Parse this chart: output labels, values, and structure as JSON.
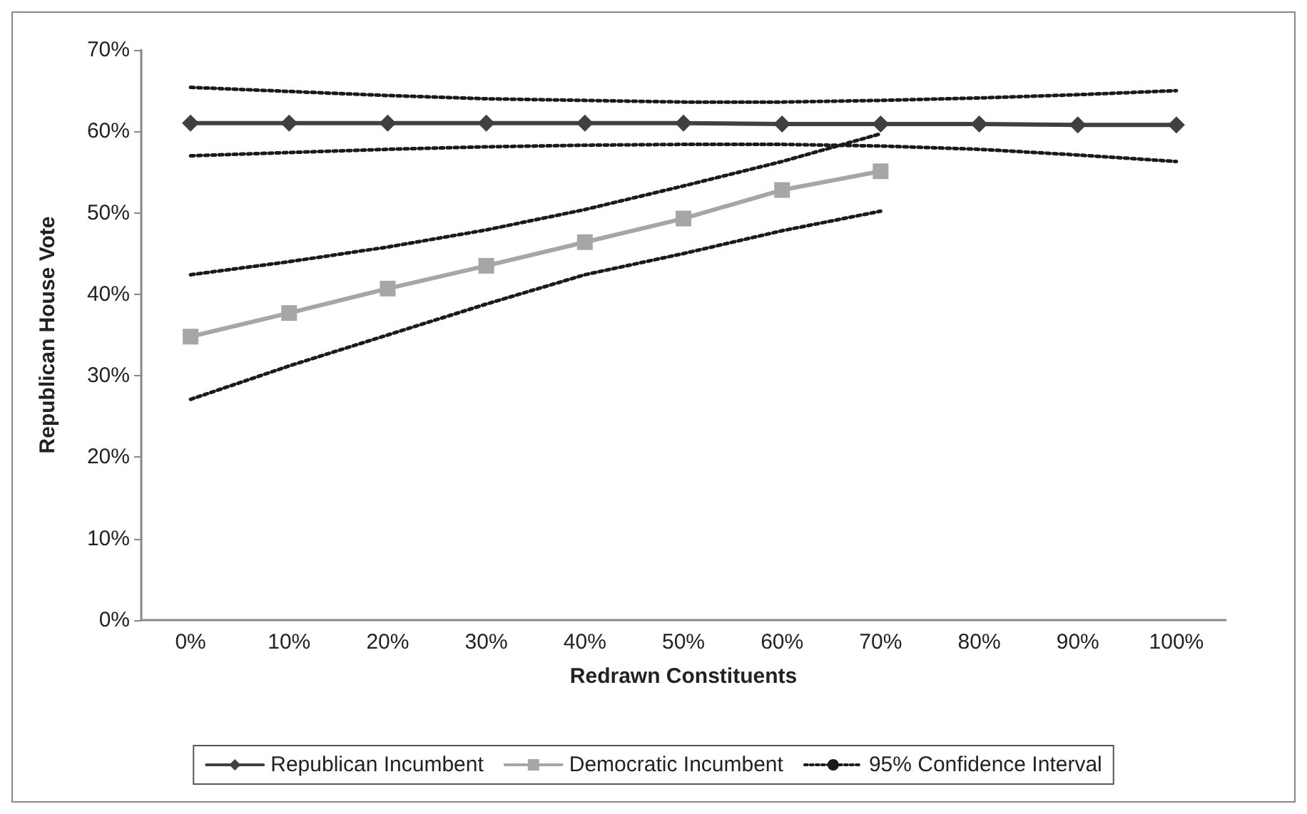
{
  "chart_data": {
    "type": "line",
    "xlabel": "Redrawn Constituents",
    "ylabel": "Republican House Vote",
    "categories": [
      "0%",
      "10%",
      "20%",
      "30%",
      "40%",
      "50%",
      "60%",
      "70%",
      "80%",
      "90%",
      "100%"
    ],
    "ylim": [
      0,
      70
    ],
    "yticks": [
      {
        "value": 0,
        "label": "0%"
      },
      {
        "value": 10,
        "label": "10%"
      },
      {
        "value": 20,
        "label": "20%"
      },
      {
        "value": 30,
        "label": "30%"
      },
      {
        "value": 40,
        "label": "40%"
      },
      {
        "value": 50,
        "label": "50%"
      },
      {
        "value": 60,
        "label": "60%"
      },
      {
        "value": 70,
        "label": "70%"
      }
    ],
    "grid": false,
    "legend": "bottom",
    "series": [
      {
        "name": "Republican Incumbent",
        "color": "#404040",
        "marker": "diamond",
        "line_style": "solid",
        "values": [
          61.0,
          61.0,
          61.0,
          61.0,
          61.0,
          61.0,
          60.9,
          60.9,
          60.9,
          60.8,
          60.8
        ]
      },
      {
        "name": "Democratic Incumbent",
        "color": "#a6a6a6",
        "marker": "square",
        "line_style": "solid",
        "values": [
          34.8,
          37.7,
          40.7,
          43.5,
          46.4,
          49.3,
          52.8,
          55.1,
          null,
          null,
          null
        ]
      },
      {
        "name": "95% Confidence Interval",
        "color": "#1a1a1a",
        "marker": "none",
        "line_style": "dotted",
        "values": [
          65.4,
          64.9,
          64.4,
          64.0,
          63.8,
          63.6,
          63.6,
          63.8,
          64.1,
          64.5,
          65.0
        ]
      },
      {
        "color": "#1a1a1a",
        "marker": "none",
        "line_style": "dotted",
        "values": [
          57.0,
          57.4,
          57.8,
          58.1,
          58.3,
          58.4,
          58.4,
          58.2,
          57.8,
          57.1,
          56.3
        ]
      },
      {
        "color": "#1a1a1a",
        "marker": "none",
        "line_style": "dotted",
        "values": [
          42.4,
          44.0,
          45.8,
          47.9,
          50.4,
          53.3,
          56.3,
          59.7,
          null,
          null,
          null
        ]
      },
      {
        "color": "#1a1a1a",
        "marker": "none",
        "line_style": "dotted",
        "values": [
          27.1,
          31.2,
          35.0,
          38.8,
          42.4,
          45.0,
          47.8,
          50.2,
          null,
          null,
          null
        ]
      }
    ]
  }
}
